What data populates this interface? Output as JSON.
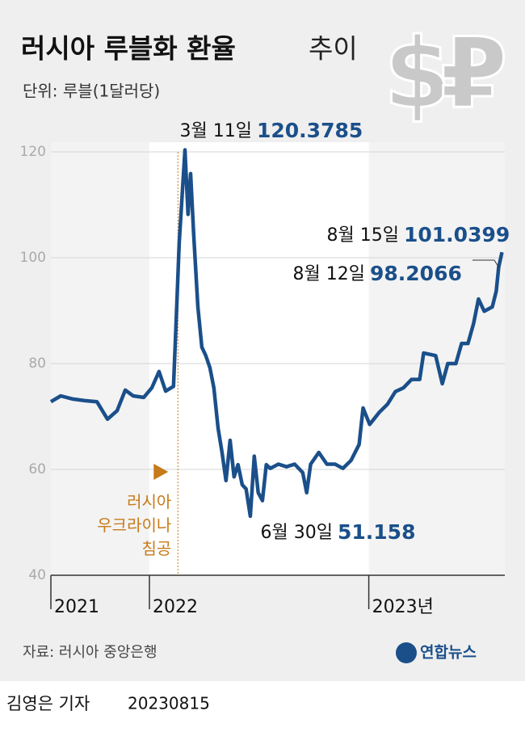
{
  "chart_data": {
    "type": "line",
    "title": "러시아 루블화 환율",
    "title_suffix": "추이",
    "subtitle": "단위: 루블(1달러당)",
    "x": [
      2021.551,
      2021.596,
      2021.651,
      2021.706,
      2021.761,
      2021.809,
      2021.853,
      2021.89,
      2021.926,
      2021.974,
      2022.011,
      2022.044,
      2022.074,
      2022.11,
      2022.121,
      2022.136,
      2022.162,
      2022.176,
      2022.188,
      2022.202,
      2022.221,
      2022.239,
      2022.257,
      2022.276,
      2022.294,
      2022.313,
      2022.331,
      2022.349,
      2022.368,
      2022.386,
      2022.404,
      2022.423,
      2022.441,
      2022.46,
      2022.478,
      2022.496,
      2022.515,
      2022.533,
      2022.551,
      2022.588,
      2022.625,
      2022.662,
      2022.699,
      2022.717,
      2022.735,
      2022.772,
      2022.809,
      2022.846,
      2022.882,
      2022.919,
      2022.956,
      2022.974,
      2023.004,
      2023.048,
      2023.085,
      2023.121,
      2023.158,
      2023.195,
      2023.232,
      2023.25,
      2023.305,
      2023.335,
      2023.36,
      2023.397,
      2023.423,
      2023.452,
      2023.478,
      2023.5,
      2023.526,
      2023.563,
      2023.581,
      2023.592,
      2023.607
    ],
    "series": [
      {
        "name": "환율",
        "color": "#1a4f8a",
        "values": [
          72.8,
          73.9,
          73.3,
          73.0,
          72.8,
          69.5,
          71.1,
          75.0,
          73.9,
          73.6,
          75.4,
          78.5,
          74.8,
          75.7,
          86.9,
          102.9,
          120.3785,
          108.2,
          115.9,
          104.4,
          90.7,
          83.1,
          81.5,
          79.2,
          75.4,
          67.8,
          63.2,
          57.9,
          65.5,
          58.6,
          60.9,
          57.1,
          56.3,
          51.158,
          62.5,
          55.6,
          54.1,
          60.9,
          60.2,
          61.0,
          60.5,
          61.0,
          59.4,
          55.6,
          61.0,
          63.2,
          61.0,
          61.0,
          60.2,
          61.7,
          64.7,
          71.6,
          68.5,
          70.8,
          72.3,
          74.7,
          75.4,
          77.0,
          77.0,
          82.0,
          81.5,
          76.2,
          80.0,
          80.0,
          83.8,
          83.8,
          87.6,
          92.2,
          89.9,
          90.7,
          93.7,
          98.2066,
          101.0399
        ]
      }
    ],
    "xlim": [
      2021.551,
      2023.62
    ],
    "xticks": [
      {
        "value": 2021.551,
        "label": "2021"
      },
      {
        "value": 2022,
        "label": "2022"
      },
      {
        "value": 2023,
        "label": "2023년"
      }
    ],
    "ylim": [
      40,
      120
    ],
    "yticks": [
      40,
      60,
      80,
      100,
      120
    ],
    "grid": true,
    "annotations": [
      {
        "text": "3월 11일",
        "value": 120.3785
      },
      {
        "text": "6월 30일",
        "value": 51.158
      },
      {
        "text": "8월 12일",
        "value": 98.2066
      },
      {
        "text": "8월 15일",
        "value": 101.0399
      }
    ],
    "event": {
      "text": "러시아\n우크라이나\n침공",
      "x": 2022.13
    },
    "source": "자료: 러시아 중앙은행",
    "logo": "연합뉴스"
  },
  "byline": {
    "reporter": "김영은 기자",
    "date": "20230815"
  }
}
